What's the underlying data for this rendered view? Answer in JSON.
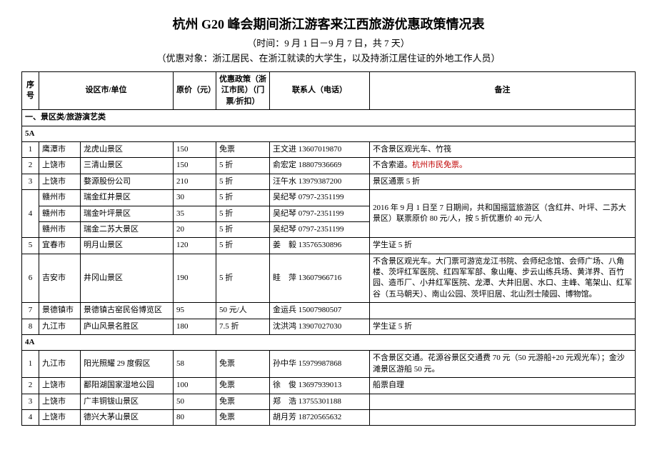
{
  "header": {
    "title": "杭州 G20 峰会期间浙江游客来江西旅游优惠政策情况表",
    "subtitle1": "（时间：9 月 1 日－9 月 7 日，共 7 天）",
    "subtitle2": "（优惠对象：浙江居民、在浙江就读的大学生，以及持浙江居住证的外地工作人员）"
  },
  "columns": {
    "seq": "序号",
    "unit": "设区市/单位",
    "price": "原价（元）",
    "policy": "优惠政策（浙江市民）（门票/折扣）",
    "contact": "联系人（电话）",
    "remark": "备注"
  },
  "section1": {
    "title": "一、景区类/旅游演艺类",
    "sub_a": "5A",
    "sub_b": "4A"
  },
  "rows5a": [
    {
      "seq": "1",
      "city": "鹰潭市",
      "unit": "龙虎山景区",
      "price": "150",
      "policy": "免票",
      "contact": "王文进 13607019870",
      "remark": "不含景区观光车、竹筏"
    },
    {
      "seq": "2",
      "city": "上饶市",
      "unit": "三清山景区",
      "price": "150",
      "policy": "5 折",
      "contact": "俞宏定 18807936669",
      "remark": "不含索道。",
      "remark_red": "杭州市民免票。"
    },
    {
      "seq": "3",
      "city": "上饶市",
      "unit": "婺源股份公司",
      "price": "210",
      "policy": "5 折",
      "contact": "汪午水 13979387200",
      "remark": "景区通票 5 折"
    },
    {
      "seq": "",
      "city": "赣州市",
      "unit": "瑞金红井景区",
      "price": "30",
      "policy": "5 折",
      "contact": "吴纪琴 0797-2351199",
      "remark": "2016 年 9 月 1 日至 7 日期间，共和国摇篮旅游区（含红井、叶坪、二苏大景区）联票原价 80 元/人，按 5 折优惠价 40 元/人",
      "rowspan_seq": "3",
      "seq_val": "4",
      "rowspan_remark": "3"
    },
    {
      "seq": "",
      "city": "赣州市",
      "unit": "瑞金叶坪景区",
      "price": "35",
      "policy": "5 折",
      "contact": "吴纪琴 0797-2351199"
    },
    {
      "seq": "",
      "city": "赣州市",
      "unit": "瑞金二苏大景区",
      "price": "20",
      "policy": "5 折",
      "contact": "吴纪琴 0797-2351199"
    },
    {
      "seq": "5",
      "city": "宜春市",
      "unit": "明月山景区",
      "price": "120",
      "policy": "5 折",
      "contact": "姜　毅 13576530896",
      "remark": "学生证 5 折"
    },
    {
      "seq": "6",
      "city": "吉安市",
      "unit": "井冈山景区",
      "price": "190",
      "policy": "5 折",
      "contact": "眭　萍 13607966716",
      "remark": "不含景区观光车。大门票可游览龙江书院、会师纪念馆、会师广场、八角楼、茨坪红军医院、红四军军部、象山庵、步云山练兵场、黄洋界、百竹园、造币厂、小井红军医院、龙潭、大井旧居、水口、主峰、笔架山、红军谷（五马朝天）、南山公园、茨坪旧居、北山烈士陵园、博物馆。"
    },
    {
      "seq": "7",
      "city": "景德镇市",
      "unit": "景德镇古窑民俗博览区",
      "price": "95",
      "policy": "50 元/人",
      "contact": "金运兵 15007980507",
      "remark": ""
    },
    {
      "seq": "8",
      "city": "九江市",
      "unit": "庐山风景名胜区",
      "price": "180",
      "policy": "7.5 折",
      "contact": "沈洪鸿 13907027030",
      "remark": "学生证 5 折"
    }
  ],
  "rows4a": [
    {
      "seq": "1",
      "city": "九江市",
      "unit": "阳光照耀 29 度假区",
      "price": "58",
      "policy": "免票",
      "contact": "孙中华 15979987868",
      "remark": "不含景区交通。花源谷景区交通费 70 元（50 元游船+20 元观光车）；金沙滩景区游船 50 元。"
    },
    {
      "seq": "2",
      "city": "上饶市",
      "unit": "鄱阳湖国家湿地公园",
      "price": "100",
      "policy": "免票",
      "contact": "徐　俊 13697939013",
      "remark": "船票自理"
    },
    {
      "seq": "3",
      "city": "上饶市",
      "unit": "广丰铜钹山景区",
      "price": "50",
      "policy": "免票",
      "contact": "郑　浩 13755301188",
      "remark": ""
    },
    {
      "seq": "4",
      "city": "上饶市",
      "unit": "德兴大茅山景区",
      "price": "80",
      "policy": "免票",
      "contact": "胡月芳 18720565632",
      "remark": ""
    }
  ]
}
